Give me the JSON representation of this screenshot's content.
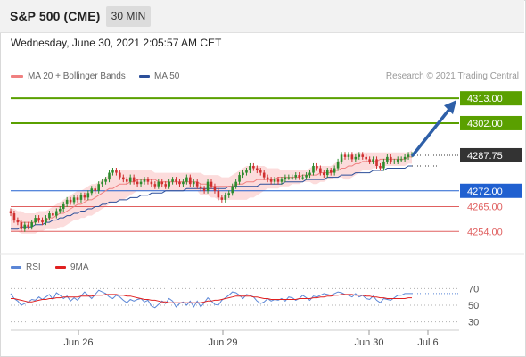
{
  "header": {
    "title": "S&P 500 (CME)",
    "timeframe": "30 MIN"
  },
  "timestamp": "Wednesday, June 30, 2021 2:05:57 AM CET",
  "legend": {
    "ma20_label": "MA 20 + Bollinger Bands",
    "ma50_label": "MA 50",
    "credit": "Research © 2021 Trading Central"
  },
  "colors": {
    "resistance": "#5aa000",
    "support": "#2060d0",
    "support_red": "#e06060",
    "last_price": "#333333",
    "arrow": "#2e5fa8",
    "up_candle": "#2e8b2e",
    "down_candle": "#d03030",
    "ma20": "#f08080",
    "ma50": "#2c4f9a",
    "bollinger_fill": "#fbd6d6",
    "rsi": "#5b86d6",
    "rsi_ma": "#e02020"
  },
  "chart_data": [
    {
      "type": "candlestick",
      "ylim": [
        4245,
        4319
      ],
      "levels": [
        {
          "label": "4313.00",
          "value": 4313.0,
          "kind": "resistance"
        },
        {
          "label": "4302.00",
          "value": 4302.0,
          "kind": "resistance"
        },
        {
          "label": "4287.75",
          "value": 4287.75,
          "kind": "last"
        },
        {
          "label": "4272.00",
          "value": 4272.0,
          "kind": "support"
        },
        {
          "label": "4265.00",
          "value": 4265.0,
          "kind": "support_red"
        },
        {
          "label": "4254.00",
          "value": 4254.0,
          "kind": "support_red"
        }
      ],
      "x_ticks": [
        "Jun 26",
        "Jun 29",
        "Jun 30",
        "Jul 6"
      ],
      "close": [
        4262,
        4259,
        4258,
        4255,
        4257,
        4256,
        4258,
        4260,
        4259,
        4258,
        4260,
        4262,
        4261,
        4263,
        4264,
        4266,
        4268,
        4267,
        4269,
        4268,
        4270,
        4269,
        4271,
        4273,
        4272,
        4275,
        4276,
        4277,
        4280,
        4281,
        4280,
        4278,
        4277,
        4276,
        4278,
        4276,
        4275,
        4276,
        4277,
        4276,
        4275,
        4274,
        4276,
        4275,
        4274,
        4276,
        4277,
        4276,
        4275,
        4276,
        4278,
        4275,
        4276,
        4274,
        4273,
        4272,
        4276,
        4274,
        4272,
        4269,
        4268,
        4270,
        4271,
        4274,
        4276,
        4279,
        4280,
        4281,
        4283,
        4282,
        4281,
        4280,
        4278,
        4277,
        4276,
        4277,
        4276,
        4277,
        4278,
        4278,
        4278,
        4279,
        4278,
        4278,
        4279,
        4280,
        4283,
        4282,
        4280,
        4279,
        4281,
        4280,
        4282,
        4285,
        4288,
        4287,
        4288,
        4286,
        4287,
        4288,
        4287,
        4286,
        4285,
        4286,
        4283,
        4282,
        4285,
        4287,
        4285,
        4285,
        4286,
        4286,
        4287,
        4288,
        4288
      ],
      "ma20": [
        4259,
        4259,
        4259,
        4258,
        4258,
        4258,
        4258,
        4258,
        4259,
        4259,
        4259,
        4260,
        4260,
        4261,
        4262,
        4262,
        4263,
        4264,
        4265,
        4266,
        4266,
        4267,
        4268,
        4268,
        4269,
        4270,
        4271,
        4272,
        4273,
        4273,
        4274,
        4275,
        4275,
        4275,
        4276,
        4276,
        4277,
        4277,
        4277,
        4277,
        4277,
        4277,
        4276,
        4276,
        4276,
        4276,
        4276,
        4276,
        4276,
        4276,
        4276,
        4276,
        4276,
        4276,
        4275,
        4275,
        4275,
        4274,
        4274,
        4274,
        4274,
        4274,
        4274,
        4274,
        4275,
        4275,
        4275,
        4276,
        4276,
        4276,
        4277,
        4277,
        4277,
        4277,
        4277,
        4277,
        4278,
        4278,
        4278,
        4278,
        4278,
        4278,
        4278,
        4279,
        4279,
        4279,
        4279,
        4279,
        4280,
        4280,
        4280,
        4280,
        4281,
        4281,
        4282,
        4282,
        4283,
        4283,
        4284,
        4284,
        4285,
        4285,
        4285,
        4285,
        4285,
        4286,
        4286,
        4286,
        4286,
        4286,
        4286,
        4286,
        4286,
        4287,
        4287
      ],
      "ma50": [
        4255,
        4255,
        4255,
        4256,
        4256,
        4256,
        4256,
        4257,
        4257,
        4257,
        4258,
        4258,
        4259,
        4259,
        4260,
        4260,
        4261,
        4261,
        4262,
        4262,
        4263,
        4263,
        4264,
        4264,
        4265,
        4265,
        4266,
        4266,
        4267,
        4267,
        4267,
        4268,
        4268,
        4268,
        4269,
        4269,
        4269,
        4270,
        4270,
        4270,
        4271,
        4271,
        4271,
        4271,
        4272,
        4272,
        4272,
        4272,
        4272,
        4272,
        4273,
        4273,
        4273,
        4273,
        4273,
        4273,
        4273,
        4273,
        4273,
        4273,
        4273,
        4273,
        4274,
        4274,
        4274,
        4274,
        4274,
        4274,
        4274,
        4274,
        4274,
        4275,
        4275,
        4275,
        4275,
        4275,
        4275,
        4275,
        4276,
        4276,
        4276,
        4276,
        4276,
        4276,
        4277,
        4277,
        4277,
        4277,
        4277,
        4277,
        4278,
        4278,
        4278,
        4278,
        4279,
        4279,
        4279,
        4279,
        4280,
        4280,
        4280,
        4280,
        4280,
        4281,
        4281,
        4281,
        4281,
        4282,
        4282,
        4282,
        4282,
        4282,
        4282,
        4283,
        4283
      ],
      "bb_upper": [
        4264,
        4264,
        4263,
        4263,
        4262,
        4262,
        4262,
        4262,
        4263,
        4263,
        4263,
        4264,
        4265,
        4266,
        4267,
        4268,
        4269,
        4270,
        4271,
        4272,
        4272,
        4273,
        4274,
        4275,
        4275,
        4276,
        4277,
        4278,
        4279,
        4280,
        4280,
        4281,
        4281,
        4281,
        4281,
        4281,
        4281,
        4281,
        4281,
        4281,
        4281,
        4280,
        4280,
        4280,
        4280,
        4280,
        4280,
        4280,
        4280,
        4280,
        4280,
        4280,
        4280,
        4280,
        4280,
        4279,
        4279,
        4279,
        4279,
        4279,
        4278,
        4278,
        4278,
        4279,
        4280,
        4281,
        4282,
        4283,
        4283,
        4283,
        4283,
        4283,
        4283,
        4282,
        4282,
        4282,
        4282,
        4281,
        4281,
        4281,
        4281,
        4281,
        4281,
        4281,
        4281,
        4282,
        4283,
        4283,
        4283,
        4283,
        4283,
        4283,
        4284,
        4285,
        4286,
        4287,
        4288,
        4288,
        4289,
        4289,
        4289,
        4289,
        4289,
        4289,
        4289,
        4289,
        4289,
        4289,
        4289,
        4289,
        4289,
        4289,
        4289,
        4289,
        4290
      ],
      "bb_lower": [
        4254,
        4254,
        4254,
        4253,
        4253,
        4253,
        4253,
        4253,
        4254,
        4254,
        4255,
        4255,
        4255,
        4255,
        4256,
        4256,
        4257,
        4258,
        4259,
        4259,
        4260,
        4260,
        4261,
        4261,
        4262,
        4263,
        4264,
        4265,
        4266,
        4267,
        4267,
        4268,
        4268,
        4269,
        4270,
        4271,
        4272,
        4272,
        4272,
        4272,
        4272,
        4272,
        4272,
        4272,
        4272,
        4272,
        4272,
        4272,
        4272,
        4272,
        4272,
        4272,
        4272,
        4272,
        4270,
        4270,
        4270,
        4269,
        4269,
        4268,
        4268,
        4268,
        4268,
        4268,
        4268,
        4268,
        4268,
        4268,
        4269,
        4269,
        4270,
        4271,
        4272,
        4273,
        4273,
        4273,
        4273,
        4274,
        4274,
        4274,
        4275,
        4275,
        4275,
        4276,
        4276,
        4276,
        4275,
        4275,
        4276,
        4276,
        4277,
        4277,
        4278,
        4278,
        4278,
        4277,
        4277,
        4278,
        4279,
        4280,
        4281,
        4281,
        4281,
        4282,
        4282,
        4283,
        4283,
        4283,
        4283,
        4283,
        4283,
        4283,
        4283,
        4284,
        4284
      ],
      "projection": {
        "from": 4287.75,
        "to": 4313.0
      }
    },
    {
      "type": "line",
      "ylim": [
        20,
        80
      ],
      "y_ticks": [
        "70",
        "50",
        "30"
      ],
      "series": [
        {
          "name": "RSI",
          "values": [
            64,
            58,
            55,
            50,
            52,
            54,
            57,
            56,
            60,
            57,
            60,
            63,
            57,
            65,
            62,
            58,
            61,
            55,
            59,
            56,
            61,
            66,
            62,
            58,
            63,
            68,
            66,
            64,
            60,
            58,
            62,
            60,
            56,
            53,
            57,
            55,
            57,
            58,
            54,
            56,
            49,
            47,
            51,
            55,
            52,
            58,
            55,
            48,
            52,
            54,
            50,
            55,
            48,
            55,
            48,
            53,
            59,
            55,
            51,
            50,
            56,
            59,
            62,
            66,
            65,
            62,
            58,
            63,
            62,
            60,
            55,
            52,
            54,
            58,
            55,
            57,
            56,
            58,
            55,
            60,
            59,
            56,
            58,
            62,
            59,
            56,
            61,
            60,
            62,
            64,
            63,
            62,
            64,
            66,
            65,
            63,
            62,
            60,
            64,
            60,
            62,
            58,
            57,
            61,
            56,
            53,
            58,
            57,
            56,
            59,
            62,
            62,
            64,
            64,
            64
          ]
        },
        {
          "name": "9MA",
          "values": [
            58,
            58,
            57,
            56,
            55,
            54,
            54,
            55,
            56,
            57,
            57,
            58,
            58,
            59,
            59,
            60,
            60,
            60,
            60,
            60,
            61,
            61,
            61,
            61,
            62,
            62,
            62,
            63,
            63,
            63,
            63,
            62,
            62,
            61,
            61,
            60,
            59,
            58,
            57,
            57,
            56,
            56,
            55,
            54,
            54,
            53,
            53,
            53,
            53,
            53,
            53,
            53,
            53,
            53,
            53,
            54,
            55,
            55,
            56,
            56,
            57,
            58,
            59,
            60,
            61,
            61,
            61,
            61,
            61,
            60,
            60,
            59,
            58,
            58,
            57,
            57,
            57,
            57,
            57,
            57,
            57,
            57,
            58,
            58,
            58,
            58,
            59,
            59,
            60,
            60,
            61,
            61,
            62,
            62,
            63,
            63,
            63,
            63,
            62,
            62,
            62,
            61,
            61,
            60,
            60,
            59,
            59,
            58,
            58,
            58,
            58,
            58,
            58,
            59,
            59
          ]
        }
      ]
    }
  ]
}
